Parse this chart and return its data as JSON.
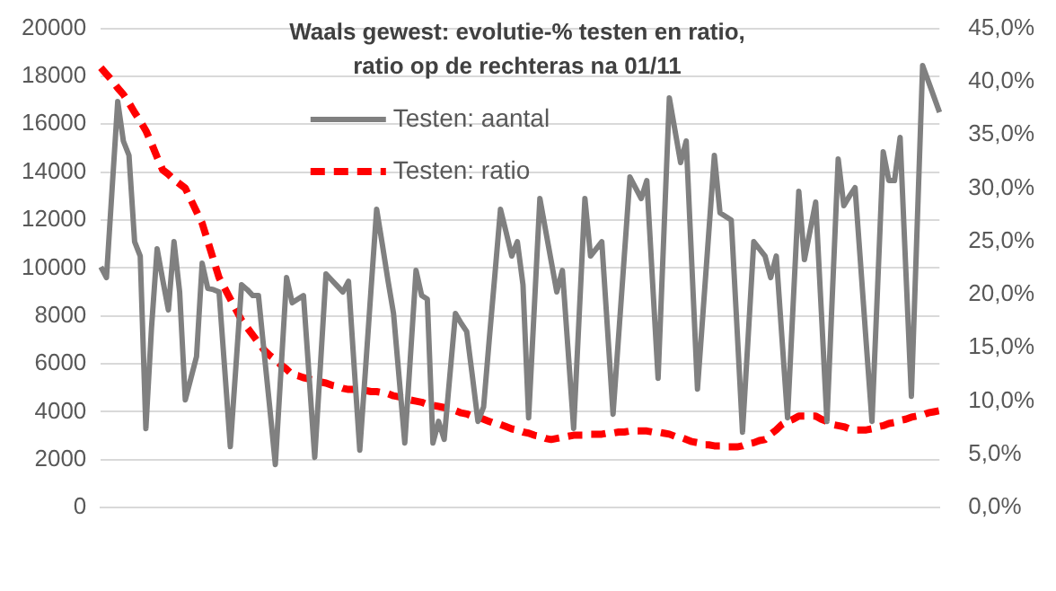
{
  "chart_data": {
    "type": "line",
    "title": "Waals gewest: evolutie-% testen en ratio, ratio op de rechteras na 01/11",
    "categories": [
      null,
      null,
      null,
      null,
      null,
      null,
      null,
      null,
      null,
      null,
      null,
      null,
      null,
      null,
      null,
      null,
      null,
      null,
      null,
      null,
      null,
      null,
      null,
      null,
      null,
      null,
      null,
      null,
      null,
      null,
      null,
      null,
      null,
      null,
      null,
      null,
      null,
      null,
      null,
      null,
      null,
      null,
      null,
      null,
      null,
      null,
      null,
      null,
      null,
      null,
      null,
      null,
      null,
      null,
      null,
      null,
      null,
      null,
      null,
      null,
      null,
      null,
      null,
      null,
      null,
      null,
      null,
      null,
      null,
      null,
      null,
      null,
      null,
      null,
      null,
      null,
      null,
      null,
      null,
      null,
      null,
      null,
      null,
      null,
      null,
      null,
      null,
      null,
      null,
      null,
      null,
      null,
      null,
      null,
      null,
      null,
      null,
      null,
      null,
      null,
      null,
      null,
      null,
      null,
      null,
      null,
      null,
      null,
      null,
      null,
      null,
      null,
      null,
      null,
      null,
      null,
      null,
      null,
      null,
      null,
      null,
      null,
      null,
      null,
      null,
      null,
      null,
      null,
      null,
      null,
      null,
      null,
      null,
      null,
      null,
      null,
      null,
      null,
      null,
      null,
      null,
      null,
      null,
      null,
      null,
      null,
      null,
      null,
      null,
      null
    ],
    "ylim": [
      0,
      20000
    ],
    "yticks": [
      0,
      2000,
      4000,
      6000,
      8000,
      10000,
      12000,
      14000,
      16000,
      18000,
      20000
    ],
    "y2lim": [
      0,
      45
    ],
    "y2ticks": [
      {
        "value": 0,
        "label": "0,0%"
      },
      {
        "value": 5,
        "label": "5,0%"
      },
      {
        "value": 10,
        "label": "10,0%"
      },
      {
        "value": 15,
        "label": "15,0%"
      },
      {
        "value": 20,
        "label": "20,0%"
      },
      {
        "value": 25,
        "label": "25,0%"
      },
      {
        "value": 30,
        "label": "30,0%"
      },
      {
        "value": 35,
        "label": "35,0%"
      },
      {
        "value": 40,
        "label": "40,0%"
      },
      {
        "value": 45,
        "label": "45,0%"
      }
    ],
    "grid": "y",
    "legend": "top",
    "marker": "none",
    "series": [
      {
        "name": "Testen: aantal",
        "color": "#808080",
        "line_style": "solid",
        "values": [
          10050,
          9600,
          13300,
          16950,
          15300,
          14700,
          11100,
          10500,
          3300,
          7500,
          10800,
          9500,
          8250,
          11100,
          9000,
          4500,
          5400,
          6300,
          10200,
          9150,
          9100,
          9000,
          5800,
          2550,
          5900,
          9300,
          9100,
          8850,
          8850,
          6500,
          4200,
          1800,
          5700,
          9600,
          8550,
          8700,
          8850,
          5500,
          2100,
          5900,
          9750,
          9500,
          9250,
          9000,
          9450,
          5900,
          2400,
          5700,
          9100,
          12450,
          11000,
          9500,
          8100,
          5400,
          2700,
          6300,
          9900,
          8850,
          8700,
          2700,
          3600,
          2850,
          5500,
          8100,
          7700,
          7350,
          5500,
          3600,
          4200,
          7000,
          9700,
          12450,
          11500,
          10500,
          11100,
          9300,
          3750,
          8300,
          12900,
          11600,
          10300,
          9000,
          9900,
          6600,
          3300,
          8100,
          12900,
          10500,
          10800,
          11100,
          7500,
          3900,
          7200,
          10500,
          13800,
          13350,
          12900,
          13650,
          9500,
          5400,
          11250,
          17100,
          15750,
          14400,
          15300,
          10100,
          4950,
          8200,
          11450,
          14700,
          12300,
          12150,
          12000,
          7600,
          3150,
          7100,
          11100,
          10800,
          10500,
          9600,
          10500,
          7100,
          3750,
          8500,
          13200,
          10350,
          11550,
          12750,
          8200,
          3600,
          9100,
          14550,
          12600,
          13000,
          13350,
          10100,
          6800,
          3600,
          9200,
          14850,
          13650,
          13650,
          15450,
          10000,
          4650,
          11550,
          18450,
          17800,
          17150,
          16500
        ]
      },
      {
        "name": "Testen: ratio",
        "color": "#ff0000",
        "line_style": "dashed",
        "axis": "y2",
        "values": [
          41.3,
          40.7,
          40.1,
          39.4,
          38.8,
          38.0,
          37.1,
          36.3,
          35.4,
          34.2,
          32.9,
          31.7,
          31.3,
          30.8,
          30.4,
          30.0,
          28.9,
          27.8,
          26.7,
          25.0,
          23.3,
          21.6,
          20.6,
          19.6,
          18.6,
          17.6,
          16.9,
          16.2,
          15.5,
          14.8,
          14.3,
          13.9,
          13.4,
          13.0,
          12.5,
          12.4,
          12.2,
          12.1,
          11.9,
          11.8,
          11.7,
          11.5,
          11.4,
          11.2,
          11.1,
          11.1,
          11.0,
          11.0,
          10.9,
          10.9,
          10.8,
          10.7,
          10.5,
          10.4,
          10.2,
          10.1,
          10.0,
          9.9,
          9.7,
          9.6,
          9.5,
          9.4,
          9.2,
          9.1,
          8.9,
          8.8,
          8.6,
          8.5,
          8.3,
          8.1,
          7.9,
          7.8,
          7.6,
          7.4,
          7.3,
          7.1,
          7.0,
          6.8,
          6.7,
          6.5,
          6.4,
          6.5,
          6.6,
          6.7,
          6.8,
          6.8,
          6.8,
          6.9,
          6.9,
          6.9,
          7.0,
          7.0,
          7.1,
          7.1,
          7.2,
          7.2,
          7.2,
          7.2,
          7.1,
          7.1,
          7.0,
          6.9,
          6.7,
          6.6,
          6.4,
          6.2,
          6.1,
          5.9,
          5.9,
          5.8,
          5.8,
          5.7,
          5.7,
          5.7,
          5.8,
          6.0,
          6.1,
          6.3,
          6.4,
          6.9,
          7.3,
          7.8,
          8.1,
          8.3,
          8.6,
          8.6,
          8.6,
          8.6,
          8.3,
          8.1,
          7.8,
          7.7,
          7.6,
          7.4,
          7.3,
          7.3,
          7.3,
          7.4,
          7.6,
          7.7,
          7.9,
          8.0,
          8.2,
          8.3,
          8.5,
          8.6,
          8.7,
          8.9,
          9.0,
          9.1
        ]
      }
    ]
  }
}
